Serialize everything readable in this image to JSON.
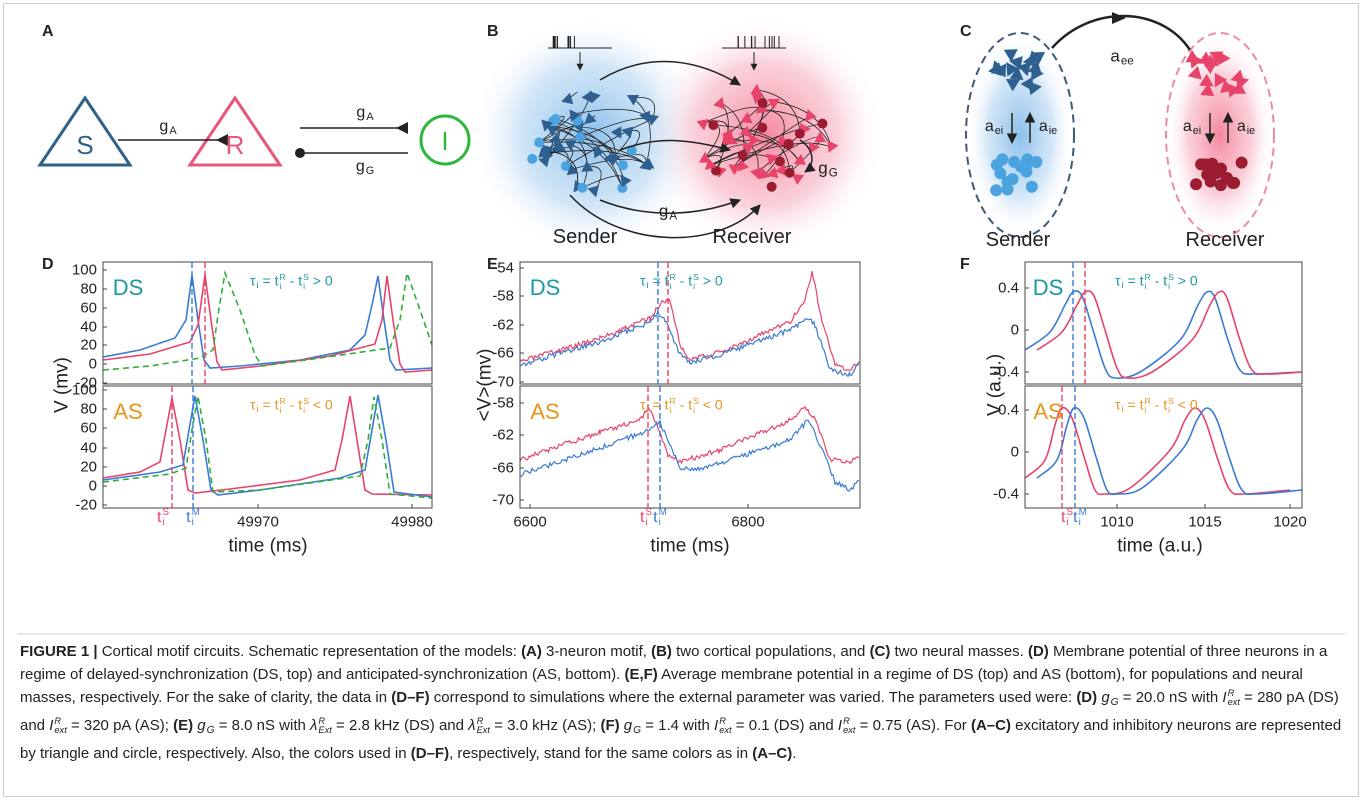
{
  "panels": {
    "a": {
      "label": "A",
      "nodes": [
        "S",
        "R",
        "I"
      ],
      "edges": [
        {
          "t": "g",
          "sub": "A"
        },
        {
          "t": "g",
          "sub": "A"
        },
        {
          "t": "g",
          "sub": "G"
        }
      ]
    },
    "b": {
      "label": "B",
      "groups": [
        "Sender",
        "Receiver"
      ],
      "edges": [
        {
          "t": "g",
          "sub": "A"
        },
        {
          "t": "g",
          "sub": "G"
        }
      ]
    },
    "c": {
      "label": "C",
      "groups": [
        "Sender",
        "Receiver"
      ],
      "edges": [
        {
          "t": "a",
          "sub": "ee"
        },
        {
          "t": "a",
          "sub": "ei"
        },
        {
          "t": "a",
          "sub": "ie"
        },
        {
          "t": "a",
          "sub": "ei"
        },
        {
          "t": "a",
          "sub": "ie"
        }
      ]
    },
    "d": {
      "label": "D",
      "ylabel": "V (mv)",
      "xlabel": "time (ms)",
      "xticks": [
        "49970",
        "49980"
      ],
      "markers": [
        {
          "t": "t",
          "sup": "S",
          "sub": "i"
        },
        {
          "t": "t",
          "sup": "M",
          "sub": "i"
        }
      ],
      "top": {
        "tag": "DS",
        "yticks": [
          "100",
          "80",
          "60",
          "40",
          "20",
          "0",
          "-20"
        ],
        "note": [
          {
            "t": "τ",
            "sub": "i"
          },
          {
            "t": " = "
          },
          {
            "t": "t",
            "sup": "R",
            "sub": "i"
          },
          {
            "t": " - "
          },
          {
            "t": "t",
            "sup": "S",
            "sub": "i"
          },
          {
            "t": " > 0"
          }
        ]
      },
      "bottom": {
        "tag": "AS",
        "yticks": [
          "100",
          "80",
          "60",
          "40",
          "20",
          "0",
          "-20"
        ],
        "note": [
          {
            "t": "τ",
            "sub": "i"
          },
          {
            "t": " = "
          },
          {
            "t": "t",
            "sup": "R",
            "sub": "i"
          },
          {
            "t": " - "
          },
          {
            "t": "t",
            "sup": "S",
            "sub": "i"
          },
          {
            "t": " < 0"
          }
        ]
      }
    },
    "e": {
      "label": "E",
      "ylabel": "<V>(mv)",
      "xlabel": "time (ms)",
      "xticks": [
        "6600",
        "6800"
      ],
      "markers": [
        {
          "t": "t",
          "sup": "S",
          "sub": "i"
        },
        {
          "t": "t",
          "sup": "M",
          "sub": "i"
        }
      ],
      "top": {
        "tag": "DS",
        "yticks": [
          "-54",
          "-58",
          "-62",
          "-66",
          "-70"
        ],
        "note": [
          {
            "t": "τ",
            "sub": "i"
          },
          {
            "t": " = "
          },
          {
            "t": "t",
            "sup": "R",
            "sub": "i"
          },
          {
            "t": " - "
          },
          {
            "t": "t",
            "sup": "S",
            "sub": "i"
          },
          {
            "t": " > 0"
          }
        ]
      },
      "bottom": {
        "tag": "AS",
        "yticks": [
          "-58",
          "-62",
          "-66",
          "-70"
        ],
        "note": [
          {
            "t": "τ",
            "sub": "i"
          },
          {
            "t": " = "
          },
          {
            "t": "t",
            "sup": "R",
            "sub": "i"
          },
          {
            "t": " - "
          },
          {
            "t": "t",
            "sup": "S",
            "sub": "i"
          },
          {
            "t": " < 0"
          }
        ]
      }
    },
    "f": {
      "label": "F",
      "ylabel": "V (a.u.)",
      "xlabel": "time (a.u.)",
      "xticks": [
        "1010",
        "1015",
        "1020"
      ],
      "markers": [
        {
          "t": "t",
          "sup": "S",
          "sub": "i"
        },
        {
          "t": "t",
          "sup": "M",
          "sub": "i"
        }
      ],
      "top": {
        "tag": "DS",
        "yticks": [
          "0.4",
          "0",
          "-0.4"
        ],
        "note": [
          {
            "t": "τ",
            "sub": "i"
          },
          {
            "t": " = "
          },
          {
            "t": "t",
            "sup": "R",
            "sub": "i"
          },
          {
            "t": " - "
          },
          {
            "t": "t",
            "sup": "S",
            "sub": "i"
          },
          {
            "t": " > 0"
          }
        ]
      },
      "bottom": {
        "tag": "AS",
        "yticks": [
          "0.4",
          "0",
          "-0.4"
        ],
        "note": [
          {
            "t": "τ",
            "sub": "i"
          },
          {
            "t": " = "
          },
          {
            "t": "t",
            "sup": "R",
            "sub": "i"
          },
          {
            "t": " - "
          },
          {
            "t": "t",
            "sup": "S",
            "sub": "i"
          },
          {
            "t": " < 0"
          }
        ]
      }
    }
  },
  "caption": [
    {
      "t": "FIGURE 1 | ",
      "b": true
    },
    {
      "t": "Cortical motif circuits. Schematic representation of the models: "
    },
    {
      "t": "(A)",
      "b": true
    },
    {
      "t": " 3-neuron motif, "
    },
    {
      "t": "(B)",
      "b": true
    },
    {
      "t": " two cortical populations, and "
    },
    {
      "t": "(C)",
      "b": true
    },
    {
      "t": " two neural masses. "
    },
    {
      "t": "(D)",
      "b": true
    },
    {
      "t": " Membrane potential of three neurons in a regime of delayed-synchronization (DS, top) and anticipated-synchronization (AS, bottom). "
    },
    {
      "t": "(E,F)",
      "b": true
    },
    {
      "t": " Average membrane potential in a regime of DS (top) and AS (bottom), for populations and neural masses, respectively. For the sake of clarity, the data in "
    },
    {
      "t": "(D–F)",
      "b": true
    },
    {
      "t": " correspond to simulations where the external parameter was varied. The parameters used were: "
    },
    {
      "t": "(D) ",
      "b": true
    },
    {
      "t": "g",
      "i": true,
      "sub": "G"
    },
    {
      "t": " = 20.0 nS with "
    },
    {
      "t": "I",
      "i": true,
      "sup": "R",
      "sub": "ext"
    },
    {
      "t": " = 280 pA (DS) and "
    },
    {
      "t": "I",
      "i": true,
      "sup": "R",
      "sub": "ext"
    },
    {
      "t": " = 320 pA (AS); "
    },
    {
      "t": "(E) ",
      "b": true
    },
    {
      "t": "g",
      "i": true,
      "sub": "G"
    },
    {
      "t": " = 8.0 nS with "
    },
    {
      "t": "λ",
      "i": true,
      "sup": "R",
      "sub": "Ext"
    },
    {
      "t": " = 2.8 kHz (DS) and "
    },
    {
      "t": "λ",
      "i": true,
      "sup": "R",
      "sub": "Ext"
    },
    {
      "t": " = 3.0 kHz (AS); "
    },
    {
      "t": "(F) ",
      "b": true
    },
    {
      "t": "g",
      "i": true,
      "sub": "G"
    },
    {
      "t": " = 1.4 with "
    },
    {
      "t": "I",
      "i": true,
      "sup": "R",
      "sub": "ext"
    },
    {
      "t": " = 0.1 (DS) and "
    },
    {
      "t": "I",
      "i": true,
      "sup": "R",
      "sub": "ext"
    },
    {
      "t": " = 0.75 (AS). For "
    },
    {
      "t": "(A–C)",
      "b": true
    },
    {
      "t": " excitatory and inhibitory neurons are represented by triangle and circle, respectively. Also, the colors used in "
    },
    {
      "t": "(D–F)",
      "b": true
    },
    {
      "t": ", respectively, stand for the same colors as in "
    },
    {
      "t": "(A–C)",
      "b": true
    },
    {
      "t": "."
    }
  ]
}
